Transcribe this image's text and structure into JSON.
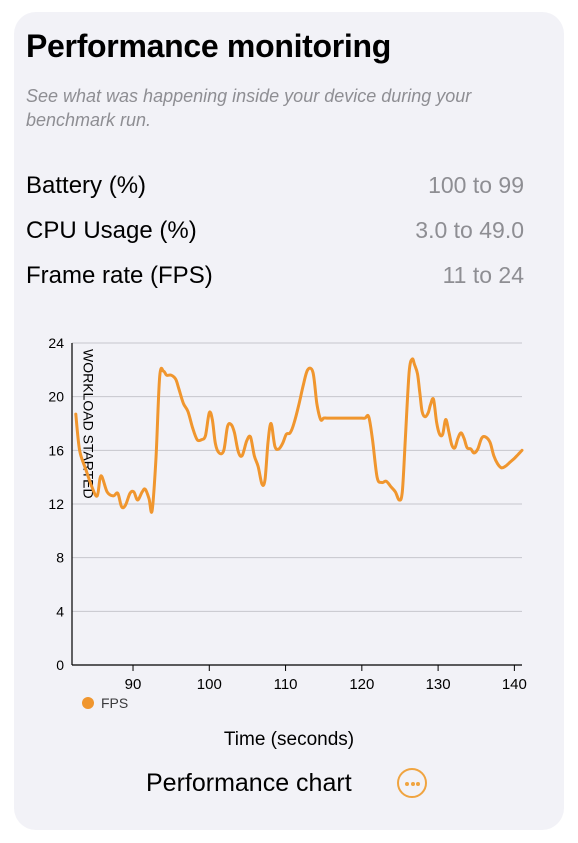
{
  "card": {
    "title": "Performance monitoring",
    "subtitle": "See what was happening inside your device during your benchmark run."
  },
  "metrics": [
    {
      "label": "Battery (%)",
      "value": "100 to 99"
    },
    {
      "label": "CPU Usage (%)",
      "value": "3.0 to 49.0"
    },
    {
      "label": "Frame rate (FPS)",
      "value": "11 to 24"
    }
  ],
  "footer": {
    "chart_label": "Performance chart",
    "more_icon": "ellipsis-circle-icon"
  },
  "colors": {
    "accent": "#f0962e",
    "grid": "#c7c7cc",
    "secondary_text": "#8e8e93"
  },
  "chart_data": {
    "type": "line",
    "xlabel": "Time (seconds)",
    "ylabel": "",
    "xlim": [
      82,
      141
    ],
    "ylim": [
      0,
      24
    ],
    "x_ticks": [
      90,
      100,
      110,
      120,
      130,
      140
    ],
    "y_ticks": [
      0,
      4,
      8,
      12,
      16,
      20,
      24
    ],
    "grid": "horizontal",
    "legend": "bottom-left",
    "annotations": [
      {
        "x": 83.5,
        "text": "WORKLOAD STARTED",
        "orientation": "vertical"
      }
    ],
    "series": [
      {
        "name": "FPS",
        "color": "#f0962e",
        "x": [
          82.5,
          83.0,
          83.8,
          84.6,
          85.3,
          85.8,
          86.6,
          87.4,
          88.0,
          88.5,
          89.0,
          89.6,
          90.1,
          90.6,
          91.2,
          91.6,
          92.1,
          92.5,
          93.0,
          93.5,
          94.0,
          94.4,
          95.0,
          95.6,
          96.0,
          96.6,
          97.2,
          97.8,
          98.4,
          99.0,
          99.5,
          100.0,
          100.4,
          100.8,
          101.3,
          101.9,
          102.4,
          102.9,
          103.3,
          103.8,
          104.3,
          104.9,
          105.4,
          105.9,
          106.4,
          106.9,
          107.3,
          107.7,
          108.1,
          108.6,
          109.1,
          109.6,
          110.1,
          110.6,
          111.1,
          111.7,
          112.3,
          112.9,
          113.6,
          114.1,
          114.6,
          115.0,
          115.4,
          115.9,
          116.3,
          116.7,
          117.2,
          117.9,
          118.5,
          119.2,
          119.8,
          120.4,
          120.9,
          121.4,
          122.0,
          122.6,
          123.2,
          123.8,
          124.4,
          124.9,
          125.3,
          125.7,
          126.2,
          126.6,
          126.9,
          127.3,
          127.6,
          127.9,
          128.3,
          128.7,
          129.0,
          129.4,
          129.8,
          130.2,
          130.6,
          131.0,
          131.4,
          131.8,
          132.2,
          132.6,
          133.0,
          133.4,
          133.8,
          134.3,
          134.7,
          135.2,
          135.7,
          136.2,
          136.8,
          137.3,
          137.8,
          138.3,
          138.8,
          139.4,
          140.0,
          140.5,
          141.0
        ],
        "values": [
          18.7,
          16.0,
          14.6,
          13.3,
          12.6,
          14.1,
          12.9,
          12.6,
          12.8,
          11.8,
          11.9,
          12.8,
          12.9,
          12.3,
          12.9,
          13.1,
          12.4,
          11.5,
          15.3,
          21.5,
          21.9,
          21.6,
          21.6,
          21.3,
          20.6,
          19.5,
          18.9,
          17.7,
          16.8,
          16.8,
          17.1,
          18.8,
          18.3,
          16.5,
          15.8,
          16.0,
          17.8,
          17.9,
          17.3,
          15.9,
          15.6,
          16.7,
          17.0,
          15.6,
          14.8,
          13.5,
          13.8,
          16.6,
          18.0,
          16.3,
          16.1,
          16.5,
          17.2,
          17.3,
          18.0,
          19.3,
          20.8,
          22.0,
          21.8,
          19.5,
          18.3,
          18.4,
          18.4,
          18.4,
          18.4,
          18.4,
          18.4,
          18.4,
          18.4,
          18.4,
          18.4,
          18.4,
          18.5,
          16.8,
          14.0,
          13.6,
          13.7,
          13.3,
          12.9,
          12.3,
          12.9,
          16.8,
          21.8,
          22.8,
          22.4,
          21.7,
          20.3,
          18.9,
          18.5,
          18.8,
          19.4,
          19.8,
          18.1,
          17.2,
          17.2,
          18.3,
          17.4,
          16.4,
          16.2,
          16.9,
          17.3,
          16.9,
          16.2,
          16.1,
          15.8,
          16.1,
          16.9,
          17.0,
          16.6,
          15.6,
          15.0,
          14.7,
          14.8,
          15.1,
          15.4,
          15.7,
          16.0
        ]
      }
    ]
  }
}
